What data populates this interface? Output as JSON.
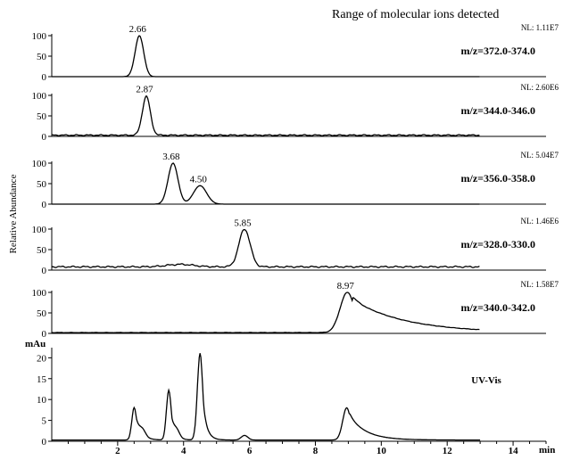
{
  "chart_data": {
    "type": "line",
    "title": "Range of molecular ions detected",
    "ylabel": "Relative Abundance",
    "xlabel": "min",
    "xlim": [
      0,
      15
    ],
    "x_ticks": [
      2,
      4,
      6,
      8,
      10,
      12,
      14
    ],
    "panels": [
      {
        "label": "m/z=372.0-374.0",
        "nl": "NL: 1.11E7",
        "ylim": [
          0,
          100
        ],
        "y_ticks": [
          0,
          50,
          100
        ],
        "baseline": 0,
        "noise": 0,
        "peaks": [
          {
            "rt": 2.66,
            "height": 100,
            "sigma": 0.13,
            "tail": 0.05,
            "label": "2.66"
          }
        ]
      },
      {
        "label": "m/z=344.0-346.0",
        "nl": "NL: 2.60E6",
        "ylim": [
          0,
          100
        ],
        "y_ticks": [
          0,
          50,
          100
        ],
        "baseline": 3,
        "noise": 1.5,
        "peaks": [
          {
            "rt": 2.87,
            "height": 95,
            "sigma": 0.12,
            "tail": 0.05,
            "label": "2.87"
          }
        ]
      },
      {
        "label": "m/z=356.0-358.0",
        "nl": "NL: 5.04E7",
        "ylim": [
          0,
          100
        ],
        "y_ticks": [
          0,
          50,
          100
        ],
        "baseline": 0,
        "noise": 0,
        "peaks": [
          {
            "rt": 3.68,
            "height": 100,
            "sigma": 0.15,
            "tail": 0.05,
            "label": "3.68"
          },
          {
            "rt": 4.5,
            "height": 45,
            "sigma": 0.2,
            "tail": 0.05,
            "label": "4.50"
          }
        ]
      },
      {
        "label": "m/z=328.0-330.0",
        "nl": "NL: 1.46E6",
        "ylim": [
          0,
          100
        ],
        "y_ticks": [
          0,
          50,
          100
        ],
        "baseline": 8,
        "noise": 2,
        "peaks": [
          {
            "rt": 3.9,
            "height": 6,
            "sigma": 0.4,
            "tail": 0,
            "label": ""
          },
          {
            "rt": 5.85,
            "height": 92,
            "sigma": 0.17,
            "tail": 0.05,
            "label": "5.85"
          }
        ]
      },
      {
        "label": "m/z=340.0-342.0",
        "nl": "NL: 1.58E7",
        "ylim": [
          0,
          100
        ],
        "y_ticks": [
          0,
          50,
          100
        ],
        "baseline": 2,
        "noise": 0.5,
        "peaks": [
          {
            "rt": 8.97,
            "height": 98,
            "sigma": 0.22,
            "tail": 1.6,
            "label": "8.97"
          }
        ]
      }
    ],
    "uv_panel": {
      "label": "UV-Vis",
      "unit": "mAu",
      "ylim": [
        0,
        22
      ],
      "y_ticks": [
        0,
        5,
        10,
        15,
        20
      ],
      "baseline": 0.3,
      "peaks": [
        {
          "rt": 2.5,
          "height": 7.7,
          "sigma": 0.07,
          "tail": 0.15
        },
        {
          "rt": 2.75,
          "height": 1.6,
          "sigma": 0.1,
          "tail": 0.1
        },
        {
          "rt": 3.55,
          "height": 11.8,
          "sigma": 0.07,
          "tail": 0.1
        },
        {
          "rt": 3.78,
          "height": 2.0,
          "sigma": 0.1,
          "tail": 0.1
        },
        {
          "rt": 4.5,
          "height": 20.8,
          "sigma": 0.08,
          "tail": 0.12
        },
        {
          "rt": 5.85,
          "height": 1.1,
          "sigma": 0.1,
          "tail": 0
        },
        {
          "rt": 8.95,
          "height": 7.7,
          "sigma": 0.12,
          "tail": 0.5
        }
      ]
    }
  }
}
